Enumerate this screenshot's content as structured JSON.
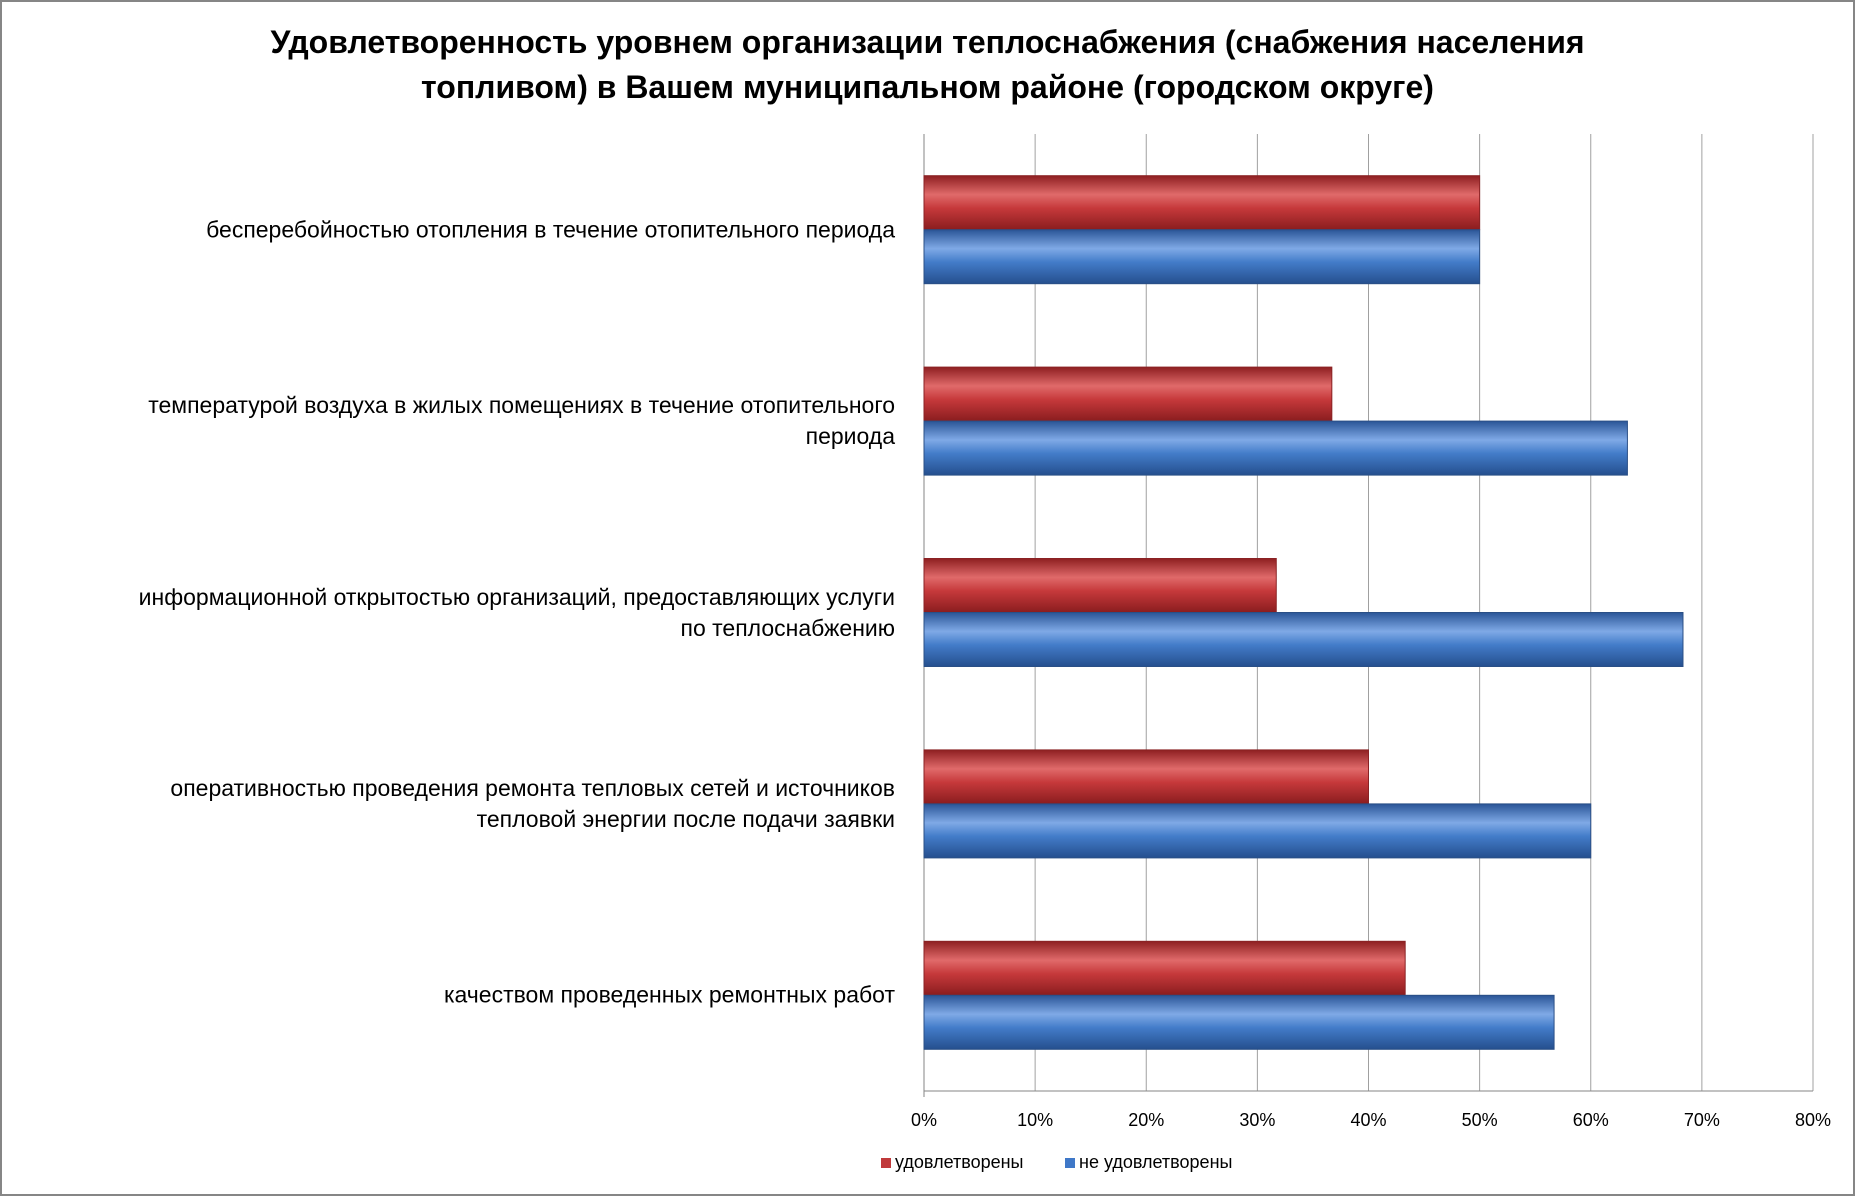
{
  "chart_data": {
    "type": "bar",
    "orientation": "horizontal",
    "title_lines": [
      "Удовлетворенность уровнем организации теплоснабжения (снабжения населения",
      "топливом) в Вашем муниципальном районе (городском округе)"
    ],
    "categories": [
      [
        "бесперебойностью  отопления в течение отопительного периода"
      ],
      [
        "температурой  воздуха в жилых помещениях в течение отопительного",
        "периода"
      ],
      [
        "информационной открытостью  организаций, предоставляющих услуги",
        "по теплоснабжению"
      ],
      [
        "оперативностью проведения ремонта тепловых сетей и источников",
        "тепловой энергии после подачи заявки"
      ],
      [
        "качеством  проведенных ремонтных работ"
      ]
    ],
    "series": [
      {
        "name": "удовлетворены",
        "color": "#C0393B",
        "values": [
          50,
          36.7,
          31.7,
          40,
          43.3
        ]
      },
      {
        "name": "не удовлетворены",
        "color": "#3F78C8",
        "values": [
          50,
          63.3,
          68.3,
          60,
          56.7
        ]
      }
    ],
    "xlim": [
      0,
      80
    ],
    "xticks": [
      "0%",
      "10%",
      "20%",
      "30%",
      "40%",
      "50%",
      "60%",
      "70%",
      "80%"
    ],
    "grid": true,
    "legend": "bottom"
  }
}
